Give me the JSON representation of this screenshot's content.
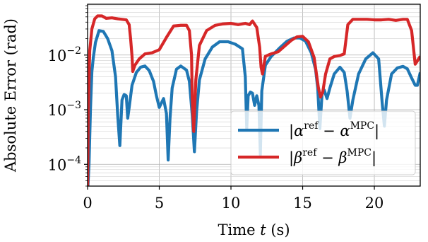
{
  "chart_data": {
    "type": "line",
    "title": "",
    "xlabel": {
      "text": "Time ",
      "var": "t",
      "unit": " (s)"
    },
    "ylabel": "Absolute Error (rad)",
    "xlim": [
      0,
      23.2
    ],
    "ylim": [
      4e-05,
      0.085
    ],
    "yscale": "log",
    "grid": true,
    "x_ticks": [
      0,
      5,
      10,
      15,
      20
    ],
    "x_tick_labels": [
      "0",
      "5",
      "10",
      "15",
      "20"
    ],
    "y_ticks": [
      0.0001,
      0.001,
      0.01
    ],
    "y_tick_labels": [
      {
        "base": "10",
        "exp": "−4"
      },
      {
        "base": "10",
        "exp": "−3"
      },
      {
        "base": "10",
        "exp": "−2"
      }
    ],
    "legend_position": "lower-right",
    "series": [
      {
        "name": "|α^ref − α^MPC|",
        "legend": {
          "open": "|",
          "sym": "α",
          "sup1": "ref",
          "mid": " − ",
          "sym2": "α",
          "sup2": "MPC",
          "close": "|"
        },
        "color": "#1f77b4",
        "points": [
          [
            0.0,
            3e-05
          ],
          [
            0.1,
            0.0001
          ],
          [
            0.2,
            0.001
          ],
          [
            0.3,
            0.005
          ],
          [
            0.4,
            0.009
          ],
          [
            0.55,
            0.017
          ],
          [
            0.8,
            0.028
          ],
          [
            1.1,
            0.027
          ],
          [
            1.4,
            0.02
          ],
          [
            1.7,
            0.012
          ],
          [
            1.95,
            0.004
          ],
          [
            2.1,
            0.0008
          ],
          [
            2.25,
            0.00022
          ],
          [
            2.4,
            0.0015
          ],
          [
            2.55,
            0.0019
          ],
          [
            2.7,
            0.0018
          ],
          [
            2.8,
            0.0007
          ],
          [
            2.9,
            0.0011
          ],
          [
            3.1,
            0.0028
          ],
          [
            3.4,
            0.0048
          ],
          [
            3.7,
            0.006
          ],
          [
            4.0,
            0.0063
          ],
          [
            4.3,
            0.0052
          ],
          [
            4.6,
            0.0033
          ],
          [
            4.8,
            0.0018
          ],
          [
            5.0,
            0.0011
          ],
          [
            5.3,
            0.0016
          ],
          [
            5.5,
            0.00085
          ],
          [
            5.62,
            0.00012
          ],
          [
            5.75,
            0.0007
          ],
          [
            5.9,
            0.0025
          ],
          [
            6.2,
            0.0055
          ],
          [
            6.5,
            0.0063
          ],
          [
            6.9,
            0.0053
          ],
          [
            7.1,
            0.0033
          ],
          [
            7.3,
            0.0008
          ],
          [
            7.45,
            0.00017
          ],
          [
            7.6,
            0.0009
          ],
          [
            7.8,
            0.0035
          ],
          [
            8.2,
            0.0085
          ],
          [
            8.7,
            0.014
          ],
          [
            9.2,
            0.0175
          ],
          [
            9.8,
            0.0175
          ],
          [
            10.3,
            0.0158
          ],
          [
            10.8,
            0.013
          ],
          [
            11.0,
            0.004
          ],
          [
            11.1,
            0.00045
          ],
          [
            11.2,
            0.0018
          ],
          [
            11.35,
            0.0021
          ],
          [
            11.5,
            0.002
          ],
          [
            11.65,
            0.0012
          ],
          [
            11.8,
            0.0018
          ],
          [
            11.95,
            0.0012
          ],
          [
            12.05,
            0.00015
          ],
          [
            12.15,
            0.0022
          ],
          [
            12.4,
            0.0065
          ],
          [
            12.8,
            0.0094
          ],
          [
            13.4,
            0.0135
          ],
          [
            13.9,
            0.0178
          ],
          [
            14.4,
            0.0205
          ],
          [
            14.8,
            0.0205
          ],
          [
            15.2,
            0.018
          ],
          [
            15.6,
            0.011
          ],
          [
            15.9,
            0.0055
          ],
          [
            16.05,
            0.0025
          ],
          [
            16.2,
            0.00045
          ],
          [
            16.35,
            0.0019
          ],
          [
            16.5,
            0.0023
          ],
          [
            16.7,
            0.0016
          ],
          [
            16.9,
            0.0025
          ],
          [
            17.2,
            0.0045
          ],
          [
            17.6,
            0.006
          ],
          [
            17.9,
            0.0048
          ],
          [
            18.1,
            0.0022
          ],
          [
            18.3,
            0.0007
          ],
          [
            18.5,
            0.0015
          ],
          [
            18.9,
            0.0045
          ],
          [
            19.4,
            0.0085
          ],
          [
            19.9,
            0.011
          ],
          [
            20.3,
            0.0085
          ],
          [
            20.55,
            0.0013
          ],
          [
            20.7,
            0.0005
          ],
          [
            20.85,
            0.0015
          ],
          [
            21.2,
            0.0045
          ],
          [
            21.6,
            0.0058
          ],
          [
            22.0,
            0.0062
          ],
          [
            22.3,
            0.0056
          ],
          [
            22.6,
            0.0038
          ],
          [
            22.85,
            0.0028
          ],
          [
            23.0,
            0.0028
          ],
          [
            23.2,
            0.0048
          ]
        ]
      },
      {
        "name": "|β^ref − β^MPC|",
        "legend": {
          "open": "|",
          "sym": "β",
          "sup1": "ref",
          "mid": " − ",
          "sym2": "β",
          "sup2": "MPC",
          "close": "|"
        },
        "color": "#d62728",
        "points": [
          [
            0.0,
            3e-05
          ],
          [
            0.05,
            0.001
          ],
          [
            0.15,
            0.012
          ],
          [
            0.3,
            0.03
          ],
          [
            0.5,
            0.046
          ],
          [
            0.7,
            0.052
          ],
          [
            1.0,
            0.052
          ],
          [
            1.3,
            0.047
          ],
          [
            1.7,
            0.048
          ],
          [
            2.1,
            0.046
          ],
          [
            2.4,
            0.045
          ],
          [
            2.7,
            0.044
          ],
          [
            2.9,
            0.036
          ],
          [
            3.0,
            0.02
          ],
          [
            3.1,
            0.0095
          ],
          [
            3.15,
            0.005
          ],
          [
            3.3,
            0.0065
          ],
          [
            3.6,
            0.0085
          ],
          [
            4.0,
            0.0105
          ],
          [
            4.5,
            0.011
          ],
          [
            5.0,
            0.0125
          ],
          [
            5.5,
            0.021
          ],
          [
            6.0,
            0.034
          ],
          [
            6.5,
            0.035
          ],
          [
            6.9,
            0.035
          ],
          [
            7.1,
            0.028
          ],
          [
            7.25,
            0.01
          ],
          [
            7.3,
            0.0016
          ],
          [
            7.4,
            0.0004
          ],
          [
            7.55,
            0.0035
          ],
          [
            7.8,
            0.015
          ],
          [
            8.3,
            0.028
          ],
          [
            8.9,
            0.035
          ],
          [
            9.4,
            0.037
          ],
          [
            10.0,
            0.038
          ],
          [
            10.5,
            0.036
          ],
          [
            11.0,
            0.038
          ],
          [
            11.3,
            0.036
          ],
          [
            11.5,
            0.042
          ],
          [
            11.8,
            0.032
          ],
          [
            12.0,
            0.014
          ],
          [
            12.1,
            0.006
          ],
          [
            12.2,
            0.0045
          ],
          [
            12.4,
            0.0095
          ],
          [
            12.8,
            0.0105
          ],
          [
            13.3,
            0.0115
          ],
          [
            13.8,
            0.015
          ],
          [
            14.2,
            0.0185
          ],
          [
            14.6,
            0.0215
          ],
          [
            15.0,
            0.022
          ],
          [
            15.4,
            0.0175
          ],
          [
            15.8,
            0.009
          ],
          [
            16.1,
            0.0025
          ],
          [
            16.25,
            0.0017
          ],
          [
            16.4,
            0.0021
          ],
          [
            16.6,
            0.0045
          ],
          [
            16.9,
            0.0085
          ],
          [
            17.2,
            0.0094
          ],
          [
            17.6,
            0.0098
          ],
          [
            17.9,
            0.0105
          ],
          [
            18.15,
            0.036
          ],
          [
            18.5,
            0.045
          ],
          [
            19.0,
            0.045
          ],
          [
            19.5,
            0.045
          ],
          [
            20.0,
            0.044
          ],
          [
            20.5,
            0.044
          ],
          [
            21.0,
            0.045
          ],
          [
            21.5,
            0.043
          ],
          [
            22.0,
            0.045
          ],
          [
            22.3,
            0.045
          ],
          [
            22.6,
            0.028
          ],
          [
            22.85,
            0.0068
          ],
          [
            23.0,
            0.0078
          ],
          [
            23.2,
            0.0095
          ]
        ]
      }
    ]
  }
}
